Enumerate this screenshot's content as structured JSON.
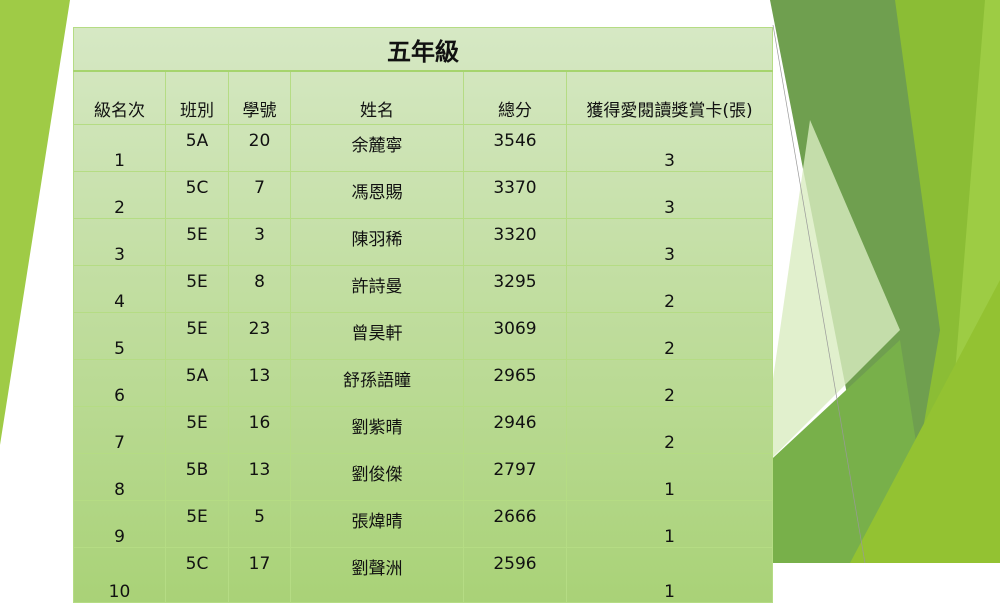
{
  "table": {
    "title": "五年級",
    "headers": [
      "級名次",
      "班別",
      "學號",
      "姓名",
      "總分",
      "獲得愛閱讀獎賞卡(張)"
    ],
    "rows": [
      [
        "1",
        "5A",
        "20",
        "余麓寧",
        "3546",
        "3"
      ],
      [
        "2",
        "5C",
        "7",
        "馮恩賜",
        "3370",
        "3"
      ],
      [
        "3",
        "5E",
        "3",
        "陳羽稀",
        "3320",
        "3"
      ],
      [
        "4",
        "5E",
        "8",
        "許詩曼",
        "3295",
        "2"
      ],
      [
        "5",
        "5E",
        "23",
        "曾昊軒",
        "3069",
        "2"
      ],
      [
        "6",
        "5A",
        "13",
        "舒孫語瞳",
        "2965",
        "2"
      ],
      [
        "7",
        "5E",
        "16",
        "劉紫晴",
        "2946",
        "2"
      ],
      [
        "8",
        "5B",
        "13",
        "劉俊傑",
        "2797",
        "1"
      ],
      [
        "9",
        "5E",
        "5",
        "張煒晴",
        "2666",
        "1"
      ],
      [
        "10",
        "5C",
        "17",
        "劉聲洲",
        "2596",
        "1"
      ]
    ]
  },
  "colors": {
    "accent": "#8dc63f",
    "dark": "#6a9a45",
    "table_top": "#d6e8c4",
    "table_bottom": "#a9d277"
  }
}
